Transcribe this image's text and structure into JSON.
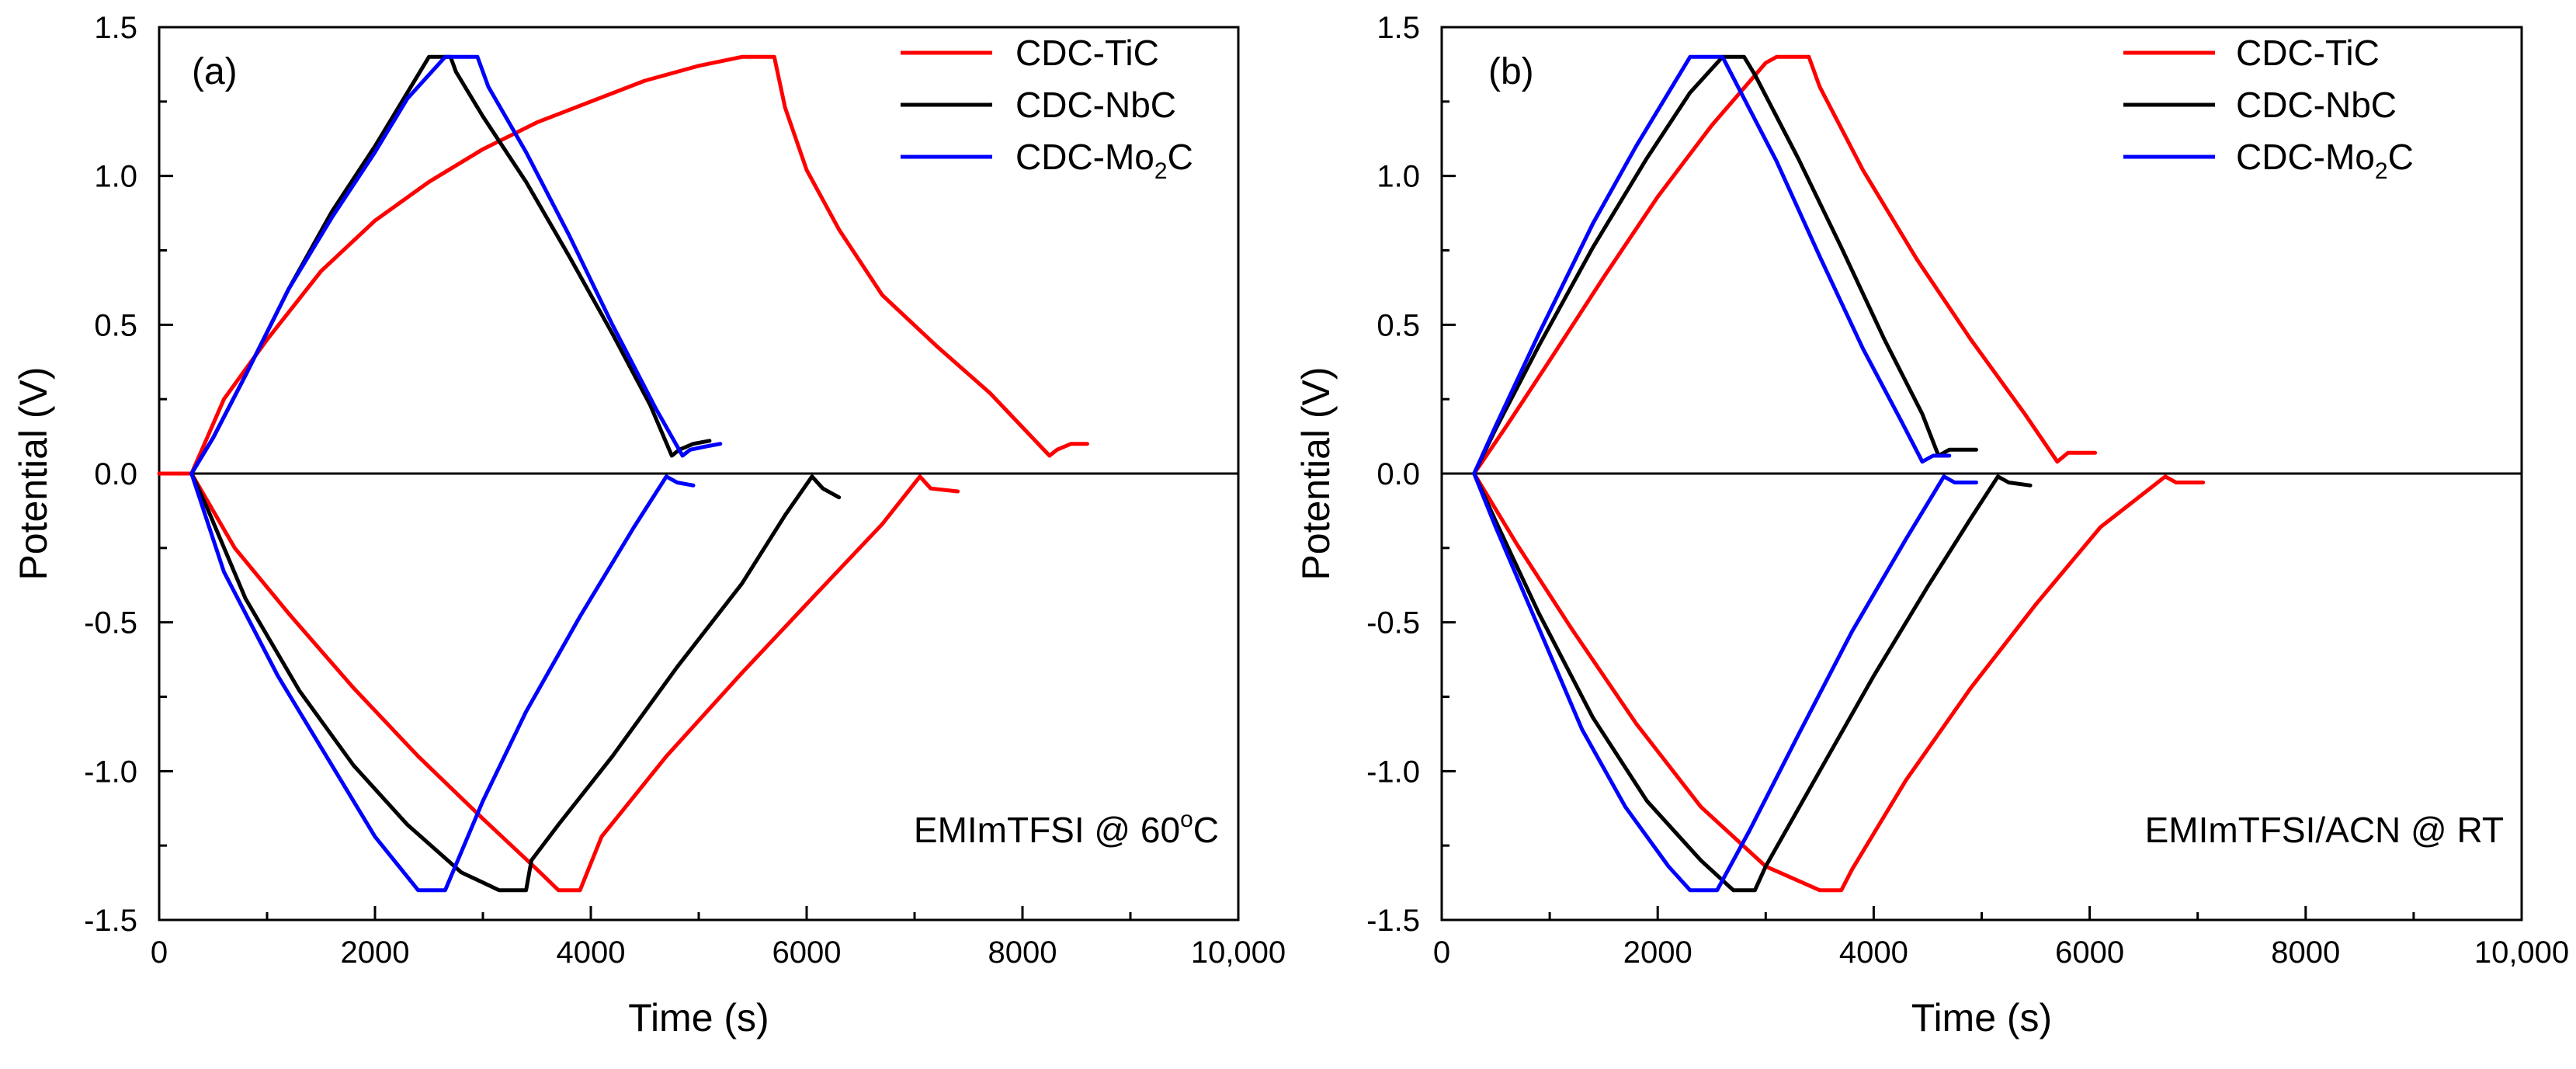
{
  "chart_data": [
    {
      "type": "line",
      "panel_label": "(a)",
      "annotation": "EMImTFSI @ 60",
      "annotation_degree": "o",
      "annotation_unit": "C",
      "xlabel": "Time (s)",
      "ylabel": "Potential (V)",
      "xlim": [
        0,
        10000
      ],
      "ylim": [
        -1.5,
        1.5
      ],
      "xticks": [
        0,
        2000,
        4000,
        6000,
        8000,
        10000
      ],
      "xtick_labels": [
        "0",
        "2000",
        "4000",
        "6000",
        "8000",
        "10,000"
      ],
      "yticks": [
        -1.5,
        -1.0,
        -0.5,
        0.0,
        0.5,
        1.0,
        1.5
      ],
      "ytick_labels": [
        "-1.5",
        "-1.0",
        "-0.5",
        "0.0",
        "0.5",
        "1.0",
        "1.5"
      ],
      "legend_position": "top-right",
      "series": [
        {
          "name": "CDC-TiC",
          "color": "#ff0000",
          "positive_curve": [
            [
              0,
              0
            ],
            [
              300,
              0
            ],
            [
              600,
              0.25
            ],
            [
              1000,
              0.45
            ],
            [
              1500,
              0.68
            ],
            [
              2000,
              0.85
            ],
            [
              2500,
              0.98
            ],
            [
              3000,
              1.09
            ],
            [
              3500,
              1.18
            ],
            [
              4000,
              1.25
            ],
            [
              4500,
              1.32
            ],
            [
              5000,
              1.37
            ],
            [
              5400,
              1.4
            ],
            [
              5700,
              1.4
            ],
            [
              5800,
              1.23
            ],
            [
              6000,
              1.02
            ],
            [
              6300,
              0.82
            ],
            [
              6700,
              0.6
            ],
            [
              7200,
              0.43
            ],
            [
              7700,
              0.27
            ],
            [
              8250,
              0.06
            ],
            [
              8320,
              0.08
            ],
            [
              8450,
              0.1
            ],
            [
              8600,
              0.1
            ]
          ],
          "negative_curve": [
            [
              300,
              0
            ],
            [
              700,
              -0.25
            ],
            [
              1200,
              -0.47
            ],
            [
              1800,
              -0.72
            ],
            [
              2400,
              -0.95
            ],
            [
              3000,
              -1.16
            ],
            [
              3500,
              -1.33
            ],
            [
              3700,
              -1.4
            ],
            [
              3900,
              -1.4
            ],
            [
              4100,
              -1.22
            ],
            [
              4700,
              -0.95
            ],
            [
              5400,
              -0.67
            ],
            [
              6100,
              -0.4
            ],
            [
              6700,
              -0.17
            ],
            [
              7050,
              -0.01
            ],
            [
              7150,
              -0.05
            ],
            [
              7400,
              -0.06
            ]
          ]
        },
        {
          "name": "CDC-NbC",
          "color": "#000000",
          "positive_curve": [
            [
              300,
              0
            ],
            [
              500,
              0.12
            ],
            [
              800,
              0.33
            ],
            [
              1200,
              0.62
            ],
            [
              1600,
              0.88
            ],
            [
              2000,
              1.1
            ],
            [
              2300,
              1.28
            ],
            [
              2500,
              1.4
            ],
            [
              2700,
              1.4
            ],
            [
              2750,
              1.35
            ],
            [
              3000,
              1.2
            ],
            [
              3400,
              0.98
            ],
            [
              3800,
              0.73
            ],
            [
              4200,
              0.47
            ],
            [
              4550,
              0.23
            ],
            [
              4750,
              0.06
            ],
            [
              4820,
              0.08
            ],
            [
              4950,
              0.1
            ],
            [
              5100,
              0.11
            ]
          ],
          "negative_curve": [
            [
              300,
              0
            ],
            [
              450,
              -0.12
            ],
            [
              800,
              -0.42
            ],
            [
              1300,
              -0.73
            ],
            [
              1800,
              -0.98
            ],
            [
              2300,
              -1.18
            ],
            [
              2800,
              -1.34
            ],
            [
              3150,
              -1.4
            ],
            [
              3400,
              -1.4
            ],
            [
              3450,
              -1.3
            ],
            [
              3700,
              -1.18
            ],
            [
              4200,
              -0.95
            ],
            [
              4800,
              -0.65
            ],
            [
              5400,
              -0.37
            ],
            [
              5800,
              -0.14
            ],
            [
              6050,
              -0.01
            ],
            [
              6150,
              -0.05
            ],
            [
              6300,
              -0.08
            ]
          ]
        },
        {
          "name": "CDC-Mo",
          "subscript": "2",
          "suffix": "C",
          "color": "#0000ff",
          "positive_curve": [
            [
              300,
              0
            ],
            [
              500,
              0.12
            ],
            [
              800,
              0.33
            ],
            [
              1200,
              0.62
            ],
            [
              1600,
              0.86
            ],
            [
              2000,
              1.08
            ],
            [
              2300,
              1.26
            ],
            [
              2650,
              1.4
            ],
            [
              2950,
              1.4
            ],
            [
              3050,
              1.3
            ],
            [
              3400,
              1.08
            ],
            [
              3800,
              0.8
            ],
            [
              4200,
              0.5
            ],
            [
              4600,
              0.22
            ],
            [
              4850,
              0.06
            ],
            [
              4920,
              0.08
            ],
            [
              5050,
              0.09
            ],
            [
              5200,
              0.1
            ]
          ],
          "negative_curve": [
            [
              300,
              0
            ],
            [
              600,
              -0.33
            ],
            [
              1100,
              -0.68
            ],
            [
              1600,
              -0.98
            ],
            [
              2000,
              -1.22
            ],
            [
              2400,
              -1.4
            ],
            [
              2650,
              -1.4
            ],
            [
              3000,
              -1.1
            ],
            [
              3400,
              -0.8
            ],
            [
              3900,
              -0.48
            ],
            [
              4400,
              -0.18
            ],
            [
              4700,
              -0.01
            ],
            [
              4800,
              -0.03
            ],
            [
              4950,
              -0.04
            ]
          ]
        }
      ]
    },
    {
      "type": "line",
      "panel_label": "(b)",
      "annotation": "EMImTFSI/ACN @ RT",
      "xlabel": "Time (s)",
      "ylabel": "Potential (V)",
      "xlim": [
        0,
        10000
      ],
      "ylim": [
        -1.5,
        1.5
      ],
      "xticks": [
        0,
        2000,
        4000,
        6000,
        8000,
        10000
      ],
      "xtick_labels": [
        "0",
        "2000",
        "4000",
        "6000",
        "8000",
        "10,000"
      ],
      "yticks": [
        -1.5,
        -1.0,
        -0.5,
        0.0,
        0.5,
        1.0,
        1.5
      ],
      "ytick_labels": [
        "-1.5",
        "-1.0",
        "-0.5",
        "0.0",
        "0.5",
        "1.0",
        "1.5"
      ],
      "legend_position": "top-right",
      "series": [
        {
          "name": "CDC-TiC",
          "color": "#ff0000",
          "positive_curve": [
            [
              300,
              0
            ],
            [
              600,
              0.16
            ],
            [
              1000,
              0.38
            ],
            [
              1500,
              0.66
            ],
            [
              2000,
              0.93
            ],
            [
              2500,
              1.17
            ],
            [
              3000,
              1.38
            ],
            [
              3100,
              1.4
            ],
            [
              3400,
              1.4
            ],
            [
              3500,
              1.3
            ],
            [
              3900,
              1.02
            ],
            [
              4400,
              0.72
            ],
            [
              4900,
              0.45
            ],
            [
              5400,
              0.2
            ],
            [
              5700,
              0.04
            ],
            [
              5800,
              0.07
            ],
            [
              6050,
              0.07
            ]
          ],
          "negative_curve": [
            [
              300,
              0
            ],
            [
              700,
              -0.24
            ],
            [
              1200,
              -0.52
            ],
            [
              1800,
              -0.84
            ],
            [
              2400,
              -1.12
            ],
            [
              3000,
              -1.32
            ],
            [
              3500,
              -1.4
            ],
            [
              3700,
              -1.4
            ],
            [
              3800,
              -1.33
            ],
            [
              4300,
              -1.03
            ],
            [
              4900,
              -0.72
            ],
            [
              5500,
              -0.44
            ],
            [
              6100,
              -0.18
            ],
            [
              6700,
              -0.01
            ],
            [
              6800,
              -0.03
            ],
            [
              7050,
              -0.03
            ]
          ]
        },
        {
          "name": "CDC-NbC",
          "color": "#000000",
          "positive_curve": [
            [
              300,
              0
            ],
            [
              500,
              0.15
            ],
            [
              900,
              0.43
            ],
            [
              1400,
              0.76
            ],
            [
              1900,
              1.06
            ],
            [
              2300,
              1.28
            ],
            [
              2600,
              1.4
            ],
            [
              2800,
              1.4
            ],
            [
              2900,
              1.34
            ],
            [
              3300,
              1.06
            ],
            [
              3700,
              0.76
            ],
            [
              4100,
              0.45
            ],
            [
              4450,
              0.2
            ],
            [
              4600,
              0.06
            ],
            [
              4700,
              0.08
            ],
            [
              4950,
              0.08
            ]
          ],
          "negative_curve": [
            [
              300,
              0
            ],
            [
              500,
              -0.16
            ],
            [
              900,
              -0.47
            ],
            [
              1400,
              -0.82
            ],
            [
              1900,
              -1.1
            ],
            [
              2400,
              -1.3
            ],
            [
              2700,
              -1.4
            ],
            [
              2900,
              -1.4
            ],
            [
              3000,
              -1.32
            ],
            [
              3500,
              -1.0
            ],
            [
              4000,
              -0.68
            ],
            [
              4500,
              -0.38
            ],
            [
              4900,
              -0.15
            ],
            [
              5150,
              -0.01
            ],
            [
              5250,
              -0.03
            ],
            [
              5450,
              -0.04
            ]
          ]
        },
        {
          "name": "CDC-Mo",
          "subscript": "2",
          "suffix": "C",
          "color": "#0000ff",
          "positive_curve": [
            [
              300,
              0
            ],
            [
              500,
              0.16
            ],
            [
              900,
              0.47
            ],
            [
              1400,
              0.84
            ],
            [
              1800,
              1.1
            ],
            [
              2100,
              1.28
            ],
            [
              2300,
              1.4
            ],
            [
              2600,
              1.4
            ],
            [
              2700,
              1.33
            ],
            [
              3100,
              1.05
            ],
            [
              3500,
              0.73
            ],
            [
              3900,
              0.42
            ],
            [
              4250,
              0.18
            ],
            [
              4450,
              0.04
            ],
            [
              4550,
              0.06
            ],
            [
              4700,
              0.06
            ]
          ],
          "negative_curve": [
            [
              300,
              0
            ],
            [
              500,
              -0.18
            ],
            [
              900,
              -0.52
            ],
            [
              1300,
              -0.86
            ],
            [
              1700,
              -1.12
            ],
            [
              2100,
              -1.32
            ],
            [
              2300,
              -1.4
            ],
            [
              2550,
              -1.4
            ],
            [
              2850,
              -1.2
            ],
            [
              3300,
              -0.88
            ],
            [
              3800,
              -0.53
            ],
            [
              4300,
              -0.22
            ],
            [
              4650,
              -0.01
            ],
            [
              4750,
              -0.03
            ],
            [
              4950,
              -0.03
            ]
          ]
        }
      ]
    }
  ]
}
